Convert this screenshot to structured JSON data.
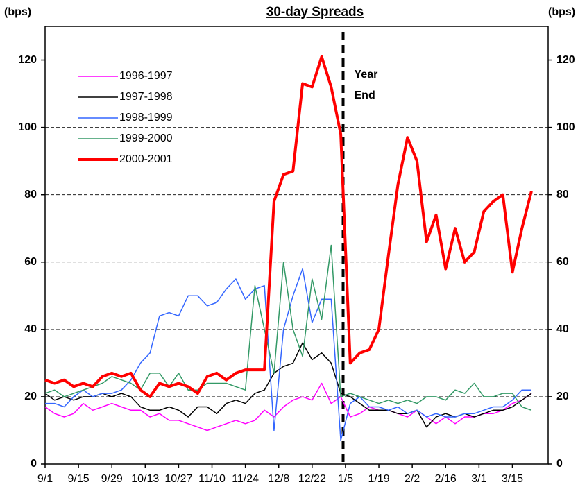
{
  "chart_data": {
    "type": "line",
    "title": "30-day Spreads",
    "ylabel": "(bps)",
    "y2label": "(bps)",
    "x": [
      0,
      4,
      8,
      12,
      16,
      20,
      24,
      28,
      32,
      36,
      40,
      44,
      48,
      52,
      56,
      60,
      64,
      68,
      72,
      76,
      80,
      84,
      88,
      92,
      96,
      100,
      104,
      108,
      112,
      116,
      120,
      124,
      128,
      132,
      136,
      140,
      144,
      148,
      152,
      156,
      160,
      164,
      168,
      172,
      176,
      180,
      184,
      188,
      192,
      196,
      200,
      204
    ],
    "xlim": [
      0,
      211
    ],
    "xticks": [
      {
        "value": 0,
        "label": "9/1"
      },
      {
        "value": 14,
        "label": "9/15"
      },
      {
        "value": 28,
        "label": "9/29"
      },
      {
        "value": 42,
        "label": "10/13"
      },
      {
        "value": 56,
        "label": "10/27"
      },
      {
        "value": 70,
        "label": "11/10"
      },
      {
        "value": 84,
        "label": "11/24"
      },
      {
        "value": 98,
        "label": "12/8"
      },
      {
        "value": 112,
        "label": "12/22"
      },
      {
        "value": 126,
        "label": "1/5"
      },
      {
        "value": 140,
        "label": "1/19"
      },
      {
        "value": 154,
        "label": "2/2"
      },
      {
        "value": 168,
        "label": "2/16"
      },
      {
        "value": 182,
        "label": "3/1"
      },
      {
        "value": 196,
        "label": "3/15"
      }
    ],
    "ylim": [
      0,
      130
    ],
    "yticks": [
      0,
      20,
      40,
      60,
      80,
      100,
      120
    ],
    "y2lim": [
      0,
      130
    ],
    "y2ticks": [
      0,
      20,
      40,
      60,
      80,
      100,
      120
    ],
    "grid": true,
    "legend": "upper left",
    "annotation": {
      "lines": [
        "Year",
        "End"
      ],
      "x": 125
    },
    "series": [
      {
        "name": "1996-1997",
        "color": "#ff00ff",
        "width": 1.5,
        "values": [
          17,
          15,
          14,
          15,
          18,
          16,
          17,
          18,
          17,
          16,
          16,
          14,
          15,
          13,
          13,
          12,
          11,
          10,
          11,
          12,
          13,
          12,
          13,
          16,
          14,
          17,
          19,
          20,
          19,
          24,
          18,
          20,
          14,
          15,
          17,
          16,
          16,
          15,
          14,
          16,
          14,
          12,
          14,
          12,
          14,
          14,
          15,
          15,
          16,
          18,
          19,
          21
        ]
      },
      {
        "name": "1997-1998",
        "color": "#000000",
        "width": 1.5,
        "values": [
          21,
          19,
          20,
          19,
          20,
          20,
          21,
          20,
          21,
          20,
          17,
          16,
          16,
          17,
          16,
          14,
          17,
          17,
          15,
          18,
          19,
          18,
          21,
          22,
          27,
          29,
          30,
          36,
          31,
          33,
          30,
          21,
          20,
          18,
          16,
          16,
          16,
          15,
          15,
          16,
          11,
          14,
          15,
          14,
          15,
          14,
          15,
          16,
          16,
          17,
          19,
          21
        ]
      },
      {
        "name": "1998-1999",
        "color": "#3366ff",
        "width": 1.5,
        "values": [
          18,
          18,
          17,
          20,
          22,
          20,
          21,
          21,
          22,
          25,
          30,
          33,
          44,
          45,
          44,
          50,
          50,
          47,
          48,
          52,
          55,
          49,
          52,
          53,
          10,
          40,
          50,
          58,
          42,
          49,
          49,
          7,
          18,
          20,
          17,
          17,
          16,
          17,
          15,
          16,
          14,
          15,
          14,
          14,
          15,
          15,
          16,
          17,
          17,
          19,
          22,
          22
        ]
      },
      {
        "name": "1999-2000",
        "color": "#339966",
        "width": 1.5,
        "values": [
          21,
          22,
          20,
          21,
          22,
          23,
          24,
          26,
          25,
          24,
          22,
          27,
          27,
          23,
          27,
          22,
          22,
          24,
          24,
          24,
          23,
          22,
          53,
          40,
          27,
          60,
          40,
          32,
          55,
          43,
          65,
          20,
          21,
          20,
          19,
          18,
          19,
          18,
          19,
          18,
          20,
          20,
          19,
          22,
          21,
          24,
          20,
          20,
          21,
          21,
          17,
          16
        ]
      },
      {
        "name": "2000-2001",
        "color": "#ff0000",
        "width": 4,
        "values": [
          25,
          24,
          25,
          23,
          24,
          23,
          26,
          27,
          26,
          27,
          22,
          20,
          24,
          23,
          24,
          23,
          21,
          26,
          27,
          25,
          27,
          28,
          28,
          28,
          78,
          86,
          87,
          113,
          112,
          121,
          112,
          98,
          30,
          33,
          34,
          40,
          62,
          83,
          97,
          90,
          66,
          74,
          58,
          70,
          60,
          63,
          75,
          78,
          80,
          57,
          70,
          81
        ]
      }
    ]
  }
}
